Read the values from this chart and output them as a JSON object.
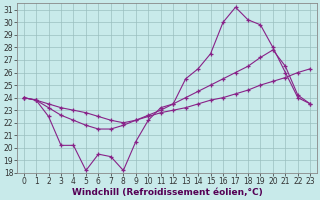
{
  "xlabel": "Windchill (Refroidissement éolien,°C)",
  "xlim": [
    -0.5,
    23.5
  ],
  "ylim": [
    18,
    31.5
  ],
  "yticks": [
    18,
    19,
    20,
    21,
    22,
    23,
    24,
    25,
    26,
    27,
    28,
    29,
    30,
    31
  ],
  "xticks": [
    0,
    1,
    2,
    3,
    4,
    5,
    6,
    7,
    8,
    9,
    10,
    11,
    12,
    13,
    14,
    15,
    16,
    17,
    18,
    19,
    20,
    21,
    22,
    23
  ],
  "background_color": "#c8eaea",
  "grid_color": "#9bbfbf",
  "line_color": "#882288",
  "line1_y": [
    24.0,
    23.8,
    22.5,
    20.2,
    20.2,
    18.2,
    19.5,
    19.3,
    18.2,
    20.5,
    22.2,
    23.2,
    23.5,
    25.5,
    26.3,
    27.5,
    30.0,
    31.2,
    30.2,
    29.8,
    28.0,
    26.0,
    24.0,
    23.5
  ],
  "line2_y": [
    24.0,
    23.8,
    23.5,
    23.2,
    23.0,
    22.8,
    22.5,
    22.2,
    22.0,
    22.2,
    22.5,
    22.8,
    23.0,
    23.2,
    23.5,
    23.8,
    24.0,
    24.3,
    24.6,
    25.0,
    25.3,
    25.6,
    26.0,
    26.3
  ],
  "line3_y": [
    24.0,
    23.8,
    23.2,
    22.6,
    22.2,
    21.8,
    21.5,
    21.5,
    21.8,
    22.2,
    22.6,
    23.0,
    23.5,
    24.0,
    24.5,
    25.0,
    25.5,
    26.0,
    26.5,
    27.2,
    27.8,
    26.5,
    24.2,
    23.5
  ],
  "tick_fontsize": 5.5,
  "xlabel_fontsize": 6.5,
  "xlabel_color": "#550055",
  "xlabel_fontweight": "bold"
}
